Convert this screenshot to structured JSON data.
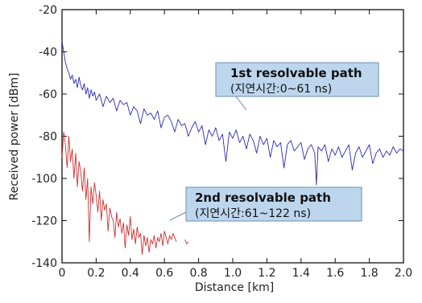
{
  "chart_data": {
    "type": "line",
    "xlabel": "Distance  [km]",
    "ylabel": "Received power  [dBm]",
    "xlim": [
      0,
      2.0
    ],
    "ylim": [
      -140,
      -20
    ],
    "xticks": [
      "0",
      "0.2",
      "0.4",
      "0.6",
      "0.8",
      "1.0",
      "1.2",
      "1.4",
      "1.6",
      "1.8",
      "2.0"
    ],
    "yticks": [
      "-20",
      "-40",
      "-60",
      "-80",
      "-100",
      "-120",
      "-140"
    ],
    "grid": false,
    "series": [
      {
        "color": "#2a2ab8",
        "x": [
          0,
          0.01,
          0.02,
          0.03,
          0.04,
          0.05,
          0.06,
          0.07,
          0.08,
          0.09,
          0.1,
          0.11,
          0.12,
          0.13,
          0.14,
          0.15,
          0.16,
          0.17,
          0.18,
          0.19,
          0.2,
          0.22,
          0.24,
          0.26,
          0.28,
          0.3,
          0.32,
          0.34,
          0.36,
          0.38,
          0.4,
          0.42,
          0.44,
          0.46,
          0.48,
          0.5,
          0.52,
          0.54,
          0.56,
          0.58,
          0.6,
          0.62,
          0.64,
          0.66,
          0.68,
          0.7,
          0.72,
          0.74,
          0.76,
          0.78,
          0.8,
          0.82,
          0.84,
          0.86,
          0.88,
          0.9,
          0.92,
          0.94,
          0.96,
          0.98,
          1.0,
          1.02,
          1.04,
          1.06,
          1.08,
          1.1,
          1.12,
          1.14,
          1.16,
          1.18,
          1.2,
          1.22,
          1.24,
          1.26,
          1.28,
          1.3,
          1.32,
          1.34,
          1.36,
          1.38,
          1.4,
          1.42,
          1.44,
          1.46,
          1.48,
          1.49,
          1.5,
          1.52,
          1.54,
          1.56,
          1.58,
          1.6,
          1.62,
          1.64,
          1.66,
          1.68,
          1.7,
          1.72,
          1.74,
          1.76,
          1.78,
          1.8,
          1.82,
          1.84,
          1.86,
          1.88,
          1.9,
          1.92,
          1.94,
          1.96,
          1.98,
          2.0
        ],
        "values": [
          -35,
          -40,
          -45,
          -48,
          -50,
          -53,
          -51,
          -55,
          -53,
          -57,
          -52,
          -56,
          -58,
          -55,
          -60,
          -57,
          -62,
          -58,
          -61,
          -59,
          -63,
          -60,
          -66,
          -61,
          -64,
          -62,
          -68,
          -63,
          -65,
          -64,
          -70,
          -66,
          -68,
          -74,
          -67,
          -70,
          -69,
          -72,
          -68,
          -76,
          -71,
          -70,
          -73,
          -78,
          -72,
          -75,
          -74,
          -80,
          -76,
          -73,
          -78,
          -75,
          -84,
          -77,
          -80,
          -76,
          -82,
          -79,
          -92,
          -78,
          -81,
          -77,
          -83,
          -80,
          -86,
          -79,
          -82,
          -88,
          -80,
          -84,
          -81,
          -90,
          -82,
          -85,
          -83,
          -95,
          -84,
          -82,
          -87,
          -85,
          -83,
          -91,
          -86,
          -84,
          -88,
          -103,
          -85,
          -87,
          -84,
          -92,
          -86,
          -89,
          -85,
          -90,
          -87,
          -84,
          -96,
          -88,
          -85,
          -90,
          -87,
          -84,
          -93,
          -88,
          -86,
          -90,
          -87,
          -89,
          -85,
          -88,
          -86,
          -87
        ]
      },
      {
        "color": "#d03030",
        "x": [
          0,
          0.01,
          0.02,
          0.03,
          0.04,
          0.05,
          0.06,
          0.07,
          0.08,
          0.09,
          0.1,
          0.11,
          0.12,
          0.13,
          0.14,
          0.15,
          0.16,
          0.17,
          0.18,
          0.19,
          0.2,
          0.21,
          0.22,
          0.23,
          0.24,
          0.25,
          0.26,
          0.27,
          0.28,
          0.29,
          0.3,
          0.31,
          0.32,
          0.33,
          0.34,
          0.35,
          0.36,
          0.37,
          0.38,
          0.39,
          0.4,
          0.41,
          0.42,
          0.43,
          0.44,
          0.45,
          0.46,
          0.47,
          0.48,
          0.49,
          0.5,
          0.51,
          0.52,
          0.53,
          0.54,
          0.55,
          0.56,
          0.57,
          0.58,
          0.59,
          0.6,
          0.61,
          0.62,
          0.63,
          0.64,
          0.65,
          0.66,
          0.67,
          0.68,
          0.69,
          0.7,
          0.71,
          0.72,
          0.73,
          0.74
        ],
        "values": [
          -90,
          -78,
          -84,
          -95,
          -80,
          -92,
          -86,
          -100,
          -88,
          -104,
          -92,
          -97,
          -106,
          -95,
          -110,
          -100,
          -130,
          -104,
          -112,
          -102,
          -108,
          -116,
          -106,
          -120,
          -110,
          -115,
          -112,
          -125,
          -114,
          -118,
          -120,
          -128,
          -116,
          -123,
          -119,
          -126,
          -121,
          -133,
          -122,
          -127,
          -118,
          -129,
          -124,
          -131,
          -123,
          -128,
          -126,
          -136,
          -127,
          -132,
          -128,
          -135,
          -129,
          -131,
          -127,
          -133,
          -128,
          -130,
          -126,
          -132,
          -125,
          -128,
          -131,
          -127,
          -129,
          -126,
          -128,
          -130,
          null,
          -131,
          null,
          null,
          -129,
          -131,
          -130
        ]
      }
    ],
    "annotations": [
      {
        "title": "1st resolvable path",
        "subtitle": "(지연시간:0~61 ns)"
      },
      {
        "title": "2nd resolvable path",
        "subtitle": "(지연시간:61~122 ns)"
      }
    ]
  }
}
